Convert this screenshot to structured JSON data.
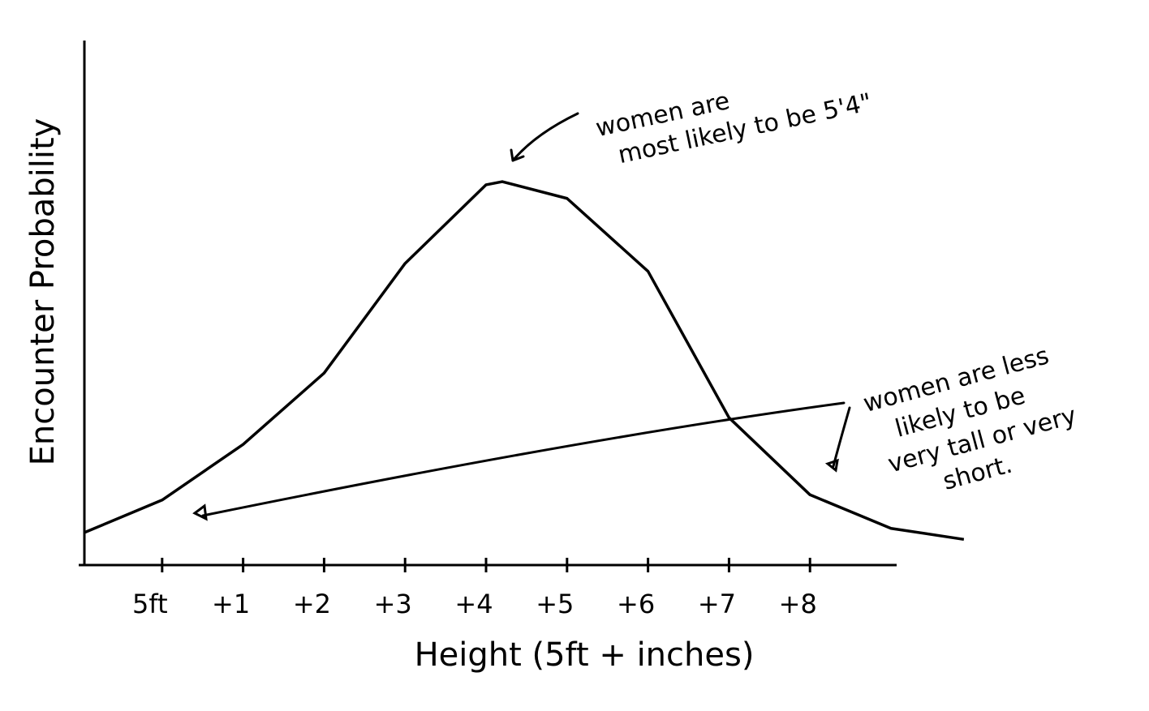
{
  "chart_data": {
    "type": "line",
    "title": null,
    "xlabel": "Height (5ft + inches)",
    "ylabel": "Encounter Probability",
    "x": [
      -0.96,
      0,
      1,
      2,
      3,
      4,
      4.2,
      5,
      6,
      7,
      8,
      9,
      9.9
    ],
    "series": [
      {
        "name": null,
        "color": "#000000",
        "values": [
          6.2,
          12.4,
          23,
          36.6,
          57.5,
          72.5,
          73.1,
          69.9,
          56,
          28.1,
          13.4,
          7,
          4.9
        ]
      }
    ],
    "xlim": [
      -0.96,
      9.07
    ],
    "xticks": [
      {
        "value": 0,
        "label": "5ft"
      },
      {
        "value": 1,
        "label": "+1"
      },
      {
        "value": 2,
        "label": "+2"
      },
      {
        "value": 3,
        "label": "+3"
      },
      {
        "value": 4,
        "label": "+4"
      },
      {
        "value": 5,
        "label": "+5"
      },
      {
        "value": 6,
        "label": "+6"
      },
      {
        "value": 7,
        "label": "+7"
      },
      {
        "value": 8,
        "label": "+8"
      }
    ],
    "ylim": [
      0,
      100
    ],
    "annotations": [
      [
        "women are",
        "most likely to be 5'4\""
      ],
      [
        "women are less",
        "likely to be",
        "very tall or very",
        "short."
      ]
    ]
  }
}
